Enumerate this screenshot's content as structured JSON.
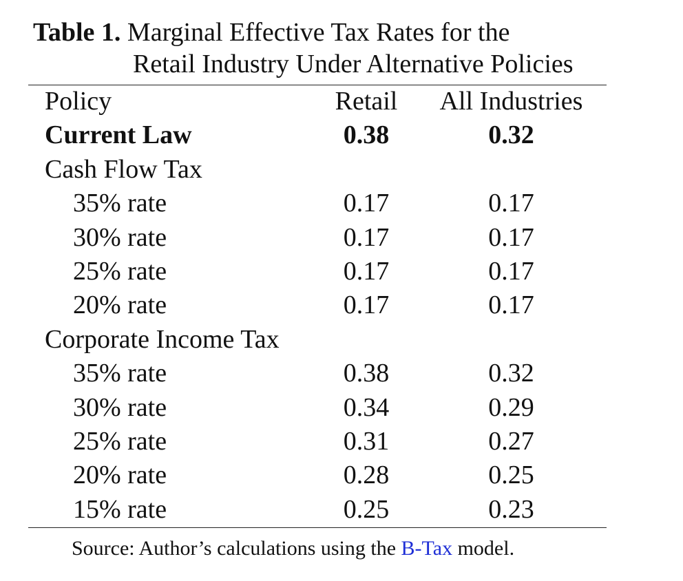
{
  "caption": {
    "label": "Table 1.",
    "line1": "Marginal Effective Tax Rates for the",
    "line2": "Retail Industry Under Alternative Policies"
  },
  "table": {
    "headers": [
      "Policy",
      "Retail",
      "All Industries"
    ],
    "rows": [
      {
        "policy": "Current Law",
        "retail": "0.38",
        "all": "0.32",
        "style": "bold"
      },
      {
        "policy": "Cash Flow Tax",
        "retail": "",
        "all": "",
        "style": "group"
      },
      {
        "policy": "35% rate",
        "retail": "0.17",
        "all": "0.17",
        "style": "sub"
      },
      {
        "policy": "30% rate",
        "retail": "0.17",
        "all": "0.17",
        "style": "sub"
      },
      {
        "policy": "25% rate",
        "retail": "0.17",
        "all": "0.17",
        "style": "sub"
      },
      {
        "policy": "20% rate",
        "retail": "0.17",
        "all": "0.17",
        "style": "sub"
      },
      {
        "policy": "Corporate Income Tax",
        "retail": "",
        "all": "",
        "style": "group"
      },
      {
        "policy": "35% rate",
        "retail": "0.38",
        "all": "0.32",
        "style": "sub"
      },
      {
        "policy": "30% rate",
        "retail": "0.34",
        "all": "0.29",
        "style": "sub"
      },
      {
        "policy": "25% rate",
        "retail": "0.31",
        "all": "0.27",
        "style": "sub"
      },
      {
        "policy": "20% rate",
        "retail": "0.28",
        "all": "0.25",
        "style": "sub"
      },
      {
        "policy": "15% rate",
        "retail": "0.25",
        "all": "0.23",
        "style": "sub"
      }
    ]
  },
  "source": {
    "prefix": "Source: Author’s calculations using the ",
    "link": "B-Tax",
    "suffix": " model."
  },
  "colors": {
    "link": "#1f2fd6",
    "text": "#111111",
    "rule": "#222222"
  }
}
